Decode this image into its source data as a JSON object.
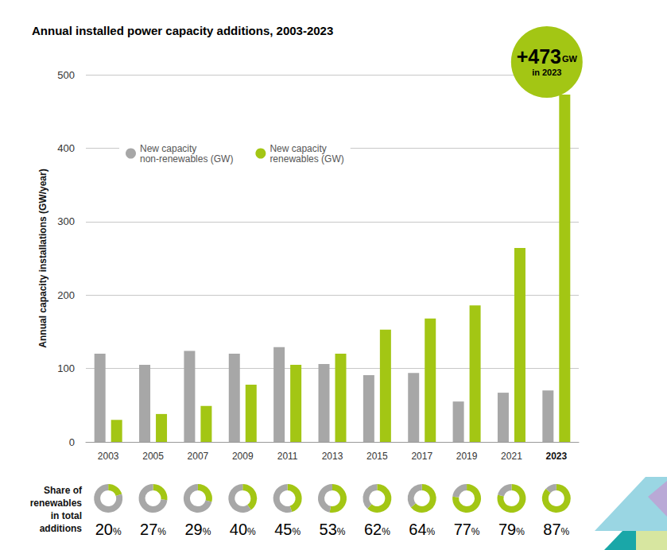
{
  "chart_data": {
    "type": "bar",
    "title": "Annual installed power capacity additions, 2003-2023",
    "y_label": "Annual capacity installations (GW/year)",
    "categories": [
      "2003",
      "2005",
      "2007",
      "2009",
      "2011",
      "2013",
      "2015",
      "2017",
      "2019",
      "2021",
      "2023"
    ],
    "series": [
      {
        "name": "New capacity\nnon-renewables (GW)",
        "color": "#a7a7a7",
        "values": [
          120,
          105,
          124,
          120,
          129,
          106,
          91,
          94,
          55,
          67,
          70
        ]
      },
      {
        "name": "New capacity\nrenewables (GW)",
        "color": "#a3c614",
        "values": [
          30,
          38,
          49,
          78,
          105,
          120,
          153,
          168,
          186,
          264,
          473
        ]
      }
    ],
    "ylim": [
      0,
      500
    ],
    "yticks": [
      0,
      100,
      200,
      300,
      400,
      500
    ],
    "grid": true,
    "legend": "upper left",
    "annotation": {
      "label": "+473",
      "unit": "GW",
      "text": "in 2023",
      "category": "2023"
    },
    "shares_title": "Share of\nrenewables\nin total\nadditions",
    "shares": [
      20,
      27,
      29,
      40,
      45,
      53,
      62,
      64,
      77,
      79,
      87
    ],
    "share_labels": [
      "20%",
      "27%",
      "29%",
      "40%",
      "45%",
      "53%",
      "62%",
      "64%",
      "77%",
      "79%",
      "87%"
    ]
  }
}
